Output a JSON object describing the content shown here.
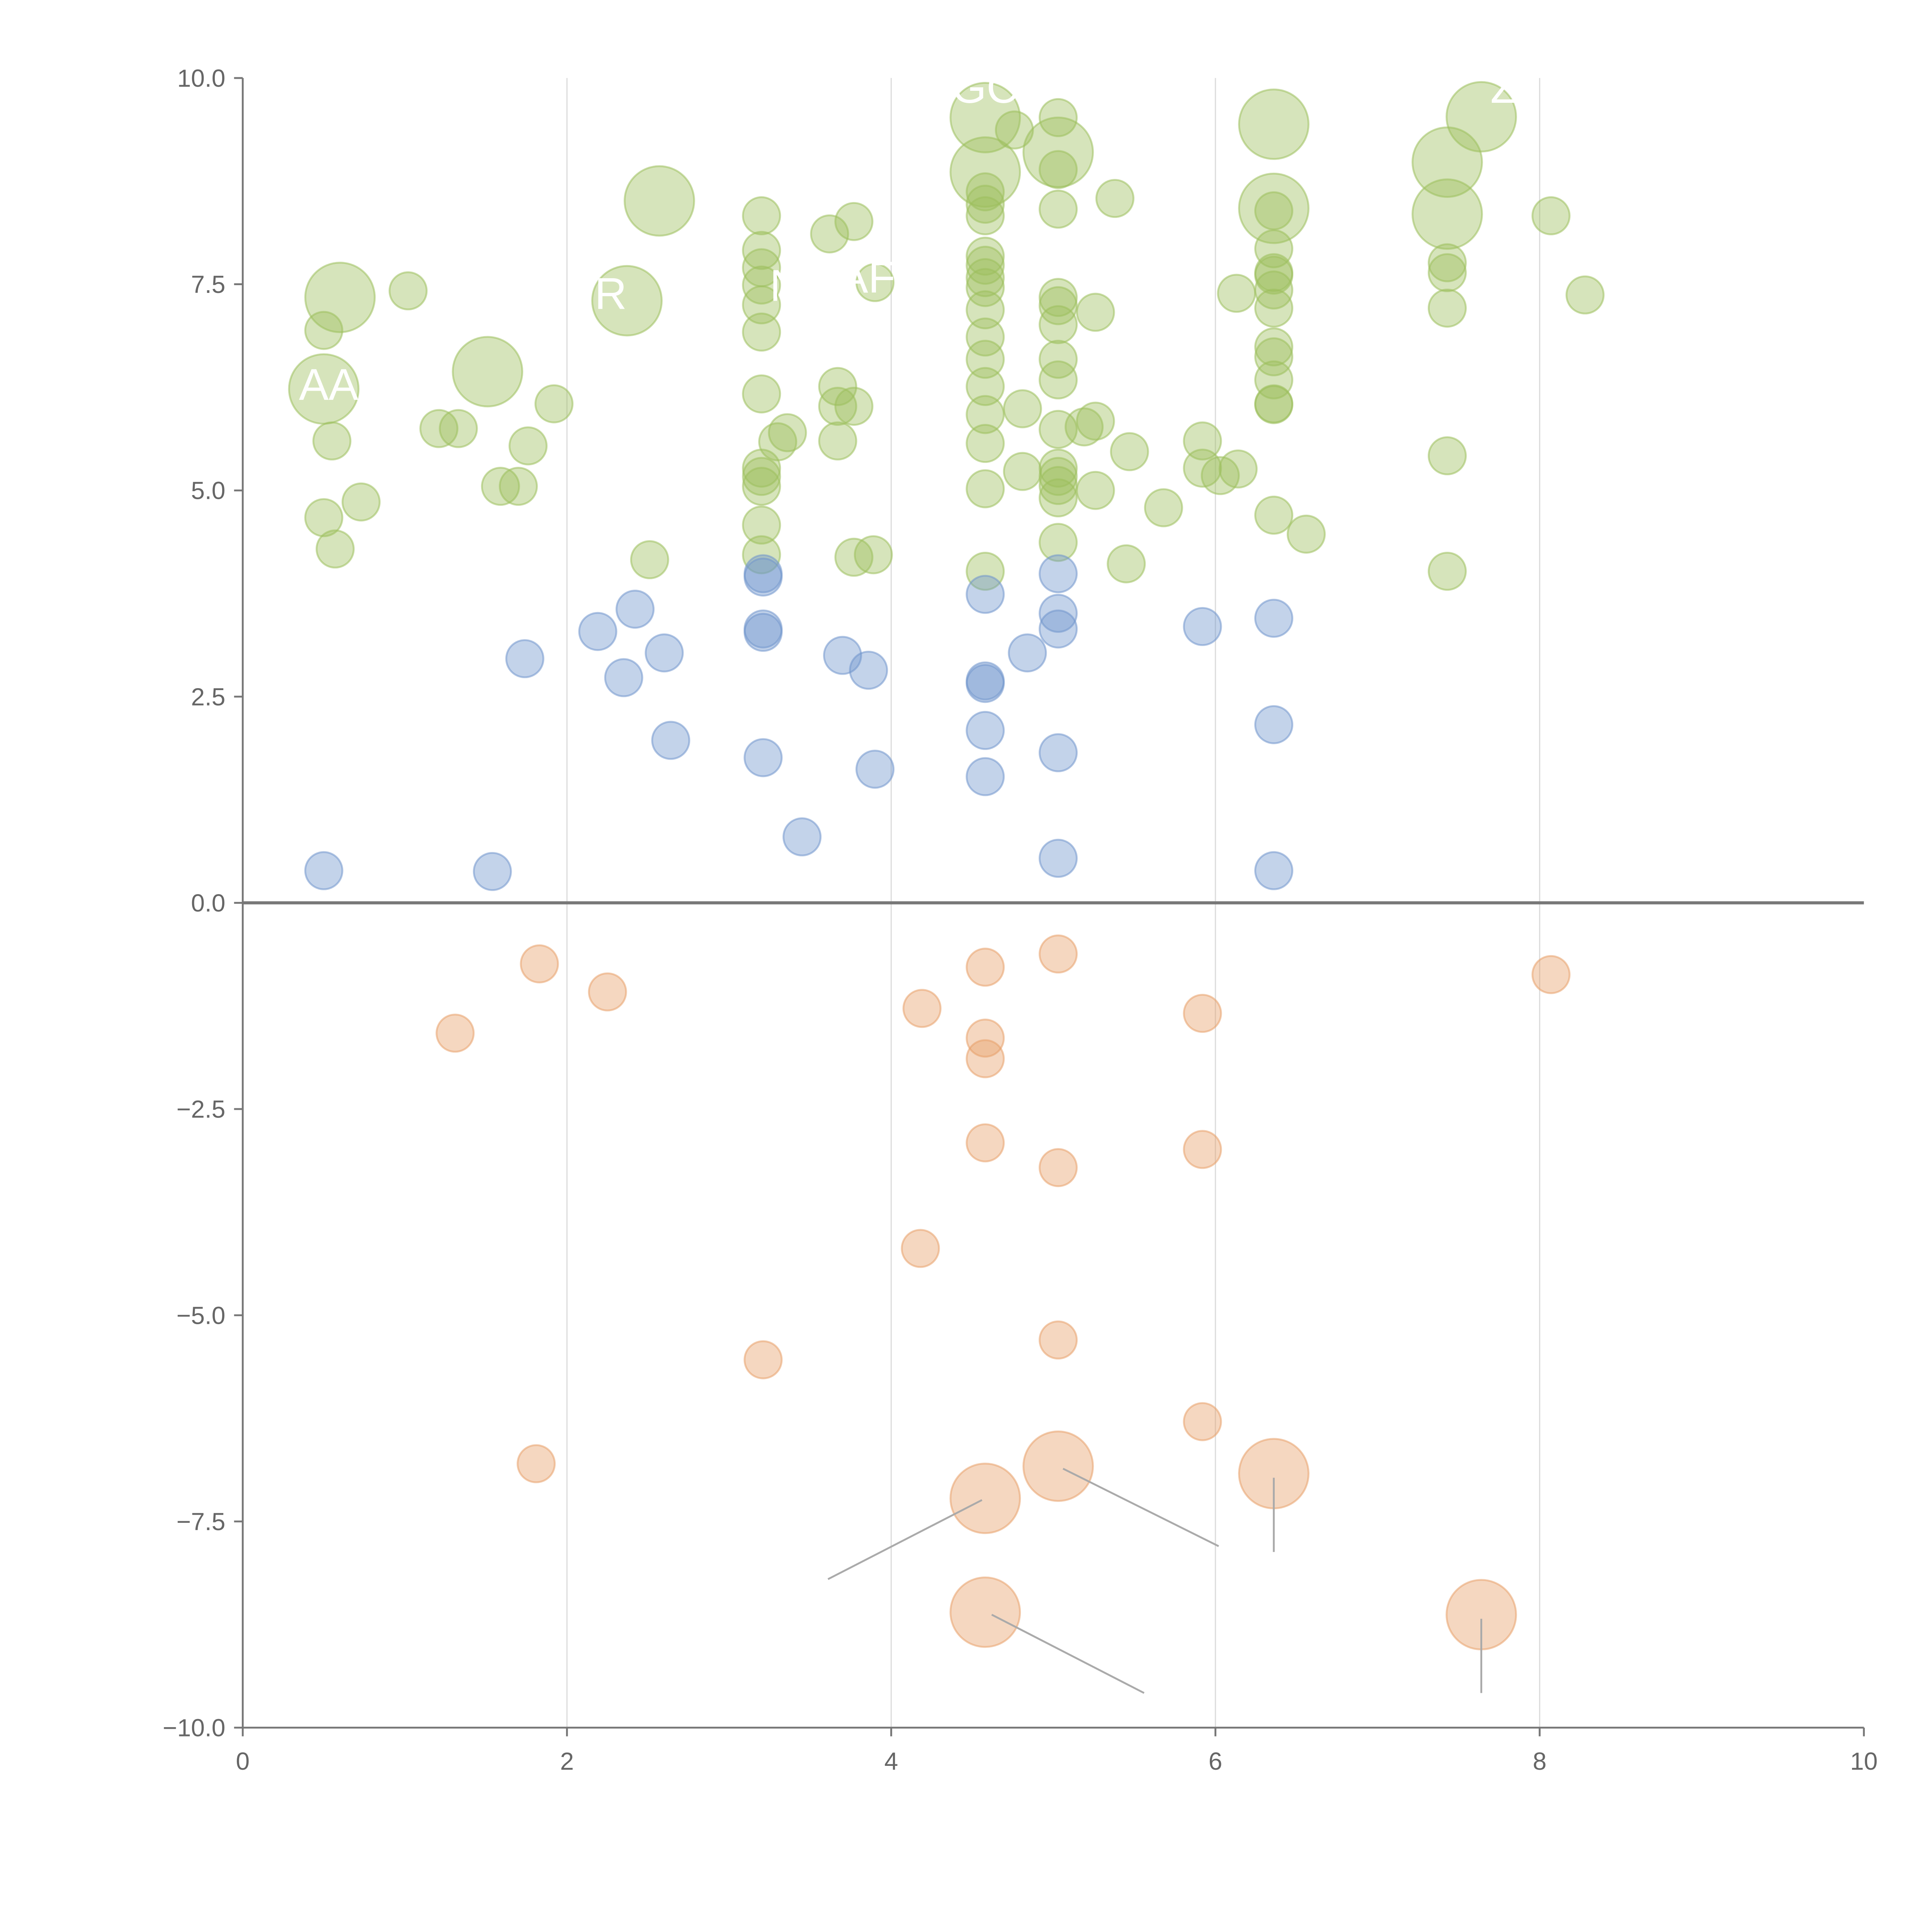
{
  "chart_data": {
    "type": "scatter",
    "title": "",
    "xlabel": "",
    "ylabel": "",
    "xlim": [
      0,
      10
    ],
    "ylim": [
      -10,
      10
    ],
    "xticks": [
      "0",
      "2",
      "4",
      "6",
      "8",
      "10"
    ],
    "xtick_values": [
      0,
      2,
      4,
      6,
      8,
      10
    ],
    "yticks": [
      "10.0",
      "7.5",
      "5.0",
      "2.5",
      "0.0",
      "−2.5",
      "−5.0",
      "−7.5",
      "−10.0"
    ],
    "ytick_values": [
      10,
      7.5,
      5,
      2.5,
      0,
      -2.5,
      -5,
      -7.5,
      -10
    ],
    "vertical_grid": [
      2,
      4,
      6,
      8
    ],
    "zero_line": true,
    "point_format": "[x, y, size]",
    "series": [
      {
        "name": "green",
        "color": "#9dbf5c",
        "points": [
          [
            0.6,
            7.34,
            3.5
          ],
          [
            1.02,
            7.42,
            1
          ],
          [
            0.5,
            6.94,
            1
          ],
          [
            0.5,
            6.23,
            3.5
          ],
          [
            0.55,
            5.6,
            1
          ],
          [
            0.5,
            4.67,
            1
          ],
          [
            0.73,
            4.86,
            1
          ],
          [
            0.57,
            4.29,
            1
          ],
          [
            1.21,
            5.75,
            1
          ],
          [
            1.33,
            5.75,
            1
          ],
          [
            1.51,
            6.44,
            3.5
          ],
          [
            1.59,
            5.05,
            1
          ],
          [
            1.7,
            5.05,
            1
          ],
          [
            1.76,
            5.54,
            1
          ],
          [
            1.92,
            6.05,
            1
          ],
          [
            2.37,
            7.3,
            3.5
          ],
          [
            2.57,
            8.51,
            3.5
          ],
          [
            2.51,
            4.16,
            1
          ],
          [
            3.2,
            8.33,
            1
          ],
          [
            3.2,
            7.91,
            1
          ],
          [
            3.2,
            7.7,
            1
          ],
          [
            3.2,
            7.49,
            1
          ],
          [
            3.2,
            7.25,
            1
          ],
          [
            3.2,
            6.92,
            1
          ],
          [
            3.2,
            6.17,
            1
          ],
          [
            3.2,
            5.27,
            1
          ],
          [
            3.2,
            5.17,
            1
          ],
          [
            3.2,
            5.05,
            1
          ],
          [
            3.2,
            4.58,
            1
          ],
          [
            3.2,
            4.22,
            1
          ],
          [
            3.36,
            5.7,
            1
          ],
          [
            3.3,
            5.59,
            1
          ],
          [
            3.62,
            8.11,
            1
          ],
          [
            3.77,
            8.26,
            1
          ],
          [
            3.67,
            6.26,
            1
          ],
          [
            3.67,
            6.02,
            1
          ],
          [
            3.77,
            6.02,
            1
          ],
          [
            3.67,
            5.6,
            1
          ],
          [
            3.77,
            4.19,
            1
          ],
          [
            3.89,
            4.22,
            1
          ],
          [
            3.9,
            7.52,
            1
          ],
          [
            4.58,
            9.52,
            3.5
          ],
          [
            4.58,
            8.86,
            3.5
          ],
          [
            4.58,
            8.62,
            1
          ],
          [
            4.58,
            8.47,
            1
          ],
          [
            4.58,
            8.33,
            1
          ],
          [
            4.58,
            7.84,
            1
          ],
          [
            4.58,
            7.73,
            1
          ],
          [
            4.58,
            7.58,
            1
          ],
          [
            4.58,
            7.46,
            1
          ],
          [
            4.58,
            7.19,
            1
          ],
          [
            4.58,
            6.86,
            1
          ],
          [
            4.58,
            6.59,
            1
          ],
          [
            4.58,
            6.26,
            1
          ],
          [
            4.58,
            5.92,
            1
          ],
          [
            4.58,
            5.57,
            1
          ],
          [
            4.58,
            5.02,
            1
          ],
          [
            4.58,
            4.02,
            1
          ],
          [
            4.81,
            5.99,
            1
          ],
          [
            4.81,
            5.23,
            1
          ],
          [
            4.76,
            9.37,
            1
          ],
          [
            5.03,
            9.52,
            1
          ],
          [
            5.03,
            9.1,
            3.5
          ],
          [
            5.03,
            8.89,
            1
          ],
          [
            5.03,
            8.41,
            1
          ],
          [
            5.03,
            7.34,
            1
          ],
          [
            5.03,
            7.24,
            1
          ],
          [
            5.03,
            7.01,
            1
          ],
          [
            5.03,
            6.59,
            1
          ],
          [
            5.03,
            6.34,
            1
          ],
          [
            5.03,
            5.74,
            1
          ],
          [
            5.03,
            5.27,
            1
          ],
          [
            5.03,
            5.17,
            1
          ],
          [
            5.03,
            5.06,
            1
          ],
          [
            5.03,
            4.91,
            1
          ],
          [
            5.03,
            4.37,
            1
          ],
          [
            5.26,
            7.16,
            1
          ],
          [
            5.26,
            5.84,
            1
          ],
          [
            5.19,
            5.77,
            1
          ],
          [
            5.26,
            5.0,
            1
          ],
          [
            5.38,
            8.54,
            1
          ],
          [
            5.47,
            5.47,
            1
          ],
          [
            5.45,
            4.11,
            1
          ],
          [
            5.68,
            4.79,
            1
          ],
          [
            5.92,
            5.6,
            1
          ],
          [
            5.92,
            5.27,
            1
          ],
          [
            6.03,
            5.18,
            1
          ],
          [
            6.13,
            7.39,
            1
          ],
          [
            6.14,
            5.26,
            1
          ],
          [
            6.36,
            9.44,
            3.5
          ],
          [
            6.36,
            8.42,
            3.5
          ],
          [
            6.36,
            8.39,
            1
          ],
          [
            6.36,
            7.93,
            1
          ],
          [
            6.36,
            7.64,
            1
          ],
          [
            6.36,
            7.61,
            1
          ],
          [
            6.36,
            7.43,
            1
          ],
          [
            6.36,
            7.21,
            1
          ],
          [
            6.36,
            6.74,
            1
          ],
          [
            6.36,
            6.62,
            1
          ],
          [
            6.36,
            6.34,
            1
          ],
          [
            6.36,
            6.05,
            1
          ],
          [
            6.36,
            6.04,
            1
          ],
          [
            6.36,
            4.7,
            1
          ],
          [
            6.56,
            4.47,
            1
          ],
          [
            7.43,
            8.98,
            3.5
          ],
          [
            7.43,
            8.35,
            3.5
          ],
          [
            7.43,
            7.76,
            1
          ],
          [
            7.43,
            7.64,
            1
          ],
          [
            7.43,
            7.21,
            1
          ],
          [
            7.43,
            5.42,
            1
          ],
          [
            7.43,
            4.02,
            1
          ],
          [
            7.64,
            9.53,
            3.5
          ],
          [
            8.07,
            8.33,
            1
          ],
          [
            8.28,
            7.37,
            1
          ]
        ]
      },
      {
        "name": "blue",
        "color": "#7196cc",
        "points": [
          [
            0.5,
            0.39,
            1
          ],
          [
            1.54,
            0.38,
            1
          ],
          [
            1.74,
            2.96,
            1
          ],
          [
            2.19,
            3.29,
            1
          ],
          [
            2.35,
            2.73,
            1
          ],
          [
            2.42,
            3.56,
            1
          ],
          [
            2.6,
            3.03,
            1
          ],
          [
            2.64,
            1.97,
            1
          ],
          [
            3.21,
            3.99,
            1
          ],
          [
            3.21,
            3.95,
            1
          ],
          [
            3.21,
            3.32,
            1
          ],
          [
            3.21,
            3.28,
            1
          ],
          [
            3.21,
            1.76,
            1
          ],
          [
            3.45,
            0.8,
            1
          ],
          [
            3.7,
            3.0,
            1
          ],
          [
            3.86,
            2.82,
            1
          ],
          [
            3.9,
            1.62,
            1
          ],
          [
            4.58,
            3.74,
            1
          ],
          [
            4.58,
            2.69,
            1
          ],
          [
            4.58,
            2.66,
            1
          ],
          [
            4.58,
            2.09,
            1
          ],
          [
            4.58,
            1.53,
            1
          ],
          [
            4.84,
            3.03,
            1
          ],
          [
            5.03,
            3.99,
            1
          ],
          [
            5.03,
            3.51,
            1
          ],
          [
            5.03,
            3.32,
            1
          ],
          [
            5.03,
            1.82,
            1
          ],
          [
            5.03,
            0.54,
            1
          ],
          [
            5.92,
            3.35,
            1
          ],
          [
            6.36,
            3.45,
            1
          ],
          [
            6.36,
            2.16,
            1
          ],
          [
            6.36,
            0.39,
            1
          ]
        ]
      },
      {
        "name": "orange",
        "color": "#e8a06a",
        "points": [
          [
            1.31,
            -1.58,
            1
          ],
          [
            1.83,
            -0.74,
            1
          ],
          [
            2.25,
            -1.08,
            1
          ],
          [
            1.81,
            -6.8,
            1
          ],
          [
            3.21,
            -5.54,
            1
          ],
          [
            4.19,
            -1.28,
            1
          ],
          [
            4.18,
            -4.19,
            1
          ],
          [
            4.58,
            -0.78,
            1
          ],
          [
            4.58,
            -1.64,
            1
          ],
          [
            4.58,
            -1.89,
            1
          ],
          [
            4.58,
            -2.91,
            1
          ],
          [
            4.58,
            -7.22,
            3.5
          ],
          [
            4.58,
            -8.6,
            3.5
          ],
          [
            5.03,
            -0.62,
            1
          ],
          [
            5.03,
            -3.21,
            1
          ],
          [
            5.03,
            -5.3,
            1
          ],
          [
            5.03,
            -6.83,
            3.5
          ],
          [
            5.92,
            -1.34,
            1
          ],
          [
            5.92,
            -2.99,
            1
          ],
          [
            5.92,
            -6.29,
            1
          ],
          [
            6.36,
            -6.92,
            3.5
          ],
          [
            7.64,
            -8.63,
            3.5
          ],
          [
            8.07,
            -0.87,
            1
          ]
        ]
      }
    ],
    "annotations": [
      {
        "text": "AA",
        "x": 0.53,
        "y": 6.1
      },
      {
        "text": "R",
        "x": 2.27,
        "y": 7.2
      },
      {
        "text": "N",
        "x": 3.35,
        "y": 7.3
      },
      {
        "text": "AF",
        "x": 3.85,
        "y": 7.4
      },
      {
        "text": "GC",
        "x": 4.58,
        "y": 9.7
      },
      {
        "text": "Z",
        "x": 7.78,
        "y": 9.7
      }
    ],
    "leader_lines": [
      [
        [
          4.56,
          -7.24
        ],
        [
          3.61,
          -8.2
        ]
      ],
      [
        [
          5.06,
          -6.86
        ],
        [
          6.02,
          -7.8
        ]
      ],
      [
        [
          6.36,
          -6.97
        ],
        [
          6.36,
          -7.87
        ]
      ],
      [
        [
          4.62,
          -8.63
        ],
        [
          5.56,
          -9.58
        ]
      ],
      [
        [
          7.64,
          -8.68
        ],
        [
          7.64,
          -9.58
        ]
      ]
    ]
  }
}
